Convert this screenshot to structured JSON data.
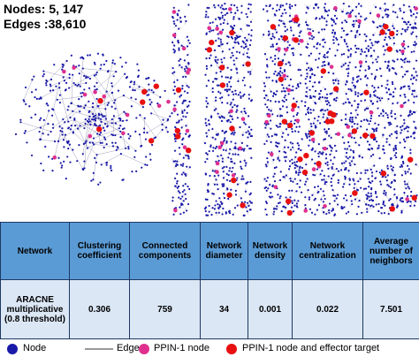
{
  "header": {
    "nodes": "Nodes: 5, 147",
    "edges": "Edges :38,610"
  },
  "table": {
    "columns": [
      "Network",
      "Clustering coefficient",
      "Connected components",
      "Network diameter",
      "Network density",
      "Network centralization",
      "Average number of neighbors"
    ],
    "rows": [
      [
        "ARACNE multiplicative (0.8 threshold)",
        "0.306",
        "759",
        "34",
        "0.001",
        "0.022",
        "7.501"
      ]
    ]
  },
  "legend": {
    "items": [
      "Node",
      "Edge",
      "PPIN-1 node",
      "PPIN-1 node and effector target"
    ]
  }
}
